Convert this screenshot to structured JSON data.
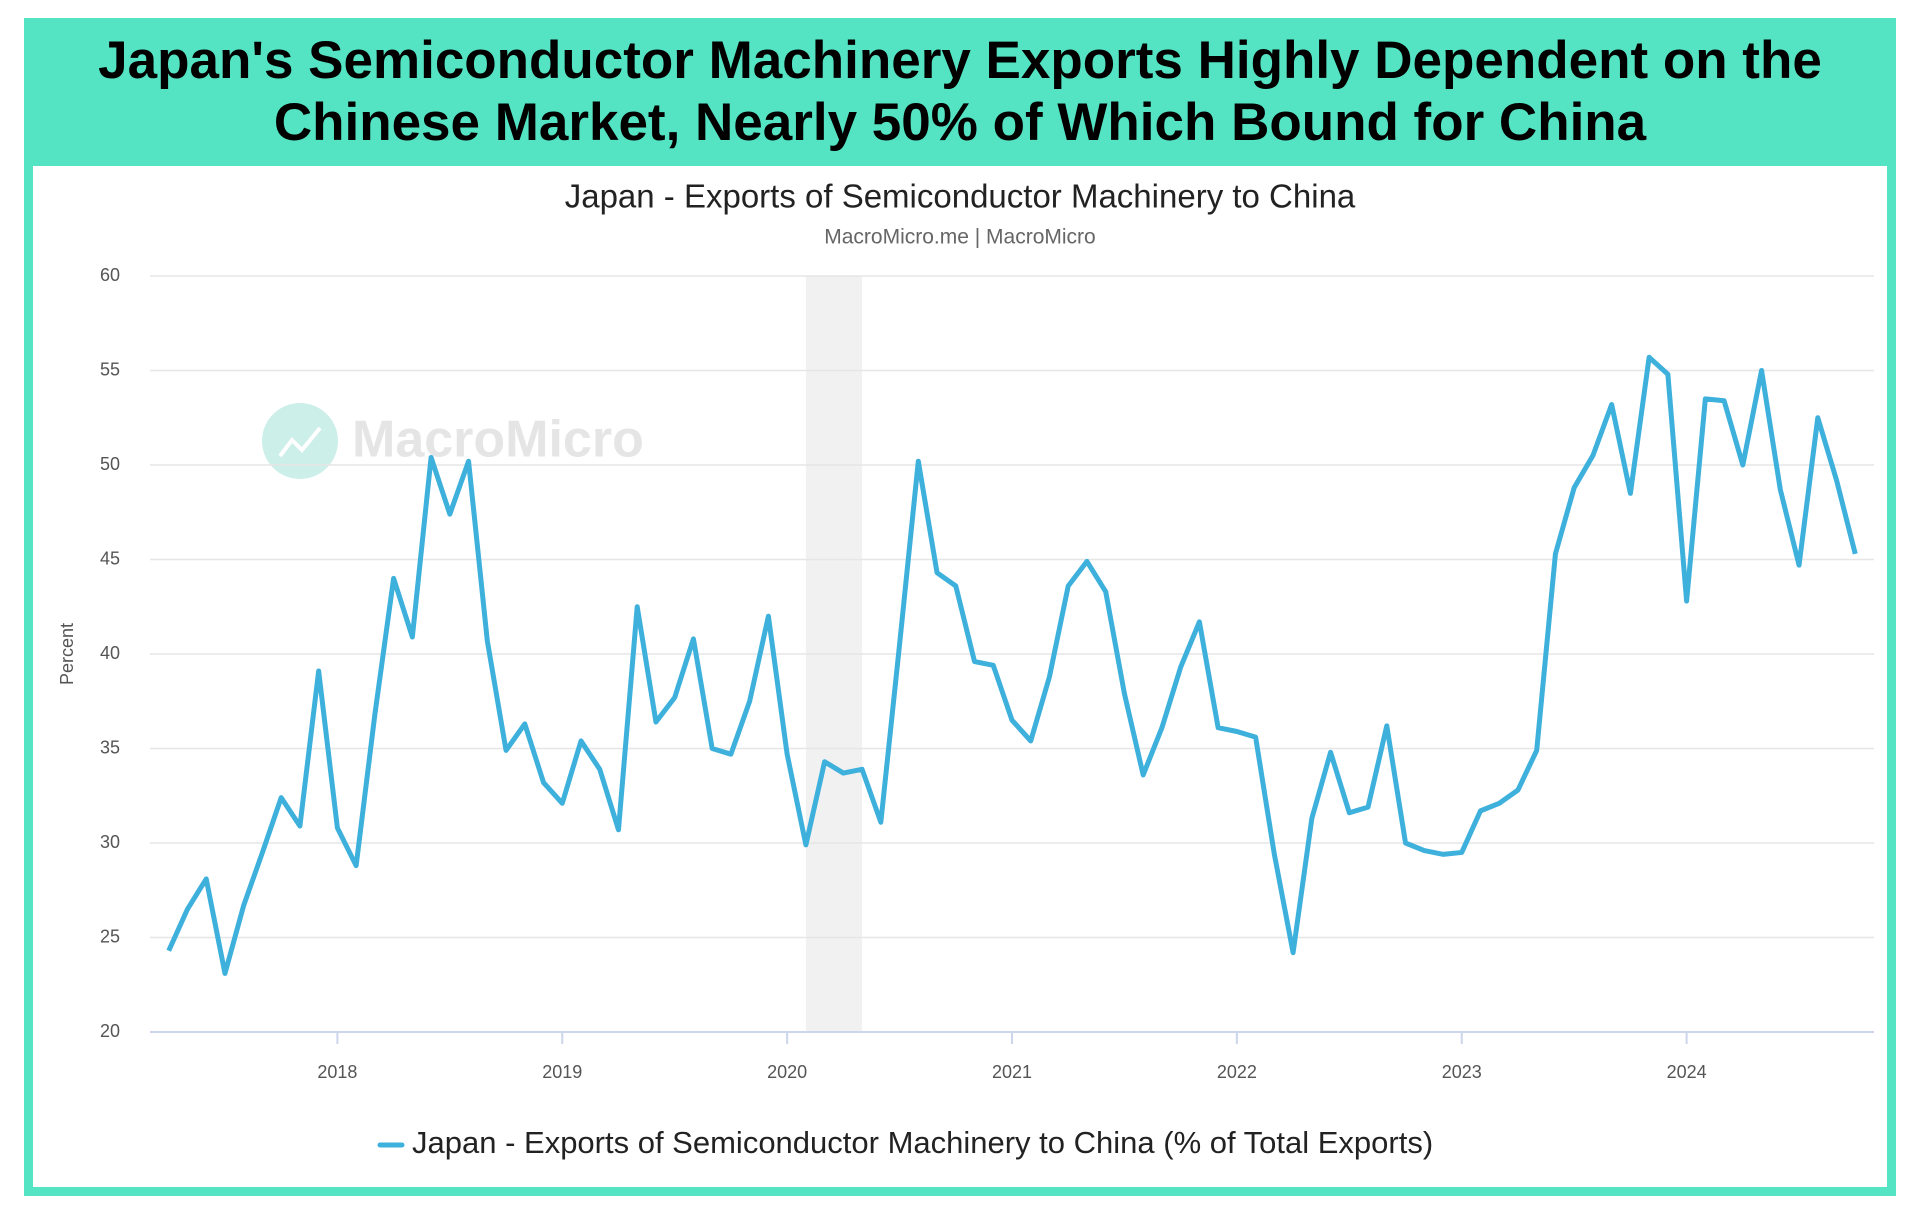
{
  "header": {
    "title": "Japan's Semiconductor Machinery Exports Highly Dependent on the Chinese Market, Nearly 50% of Which Bound for China"
  },
  "chart_data": {
    "type": "line",
    "title": "Japan - Exports of Semiconductor Machinery to China",
    "subtitle": "MacroMicro.me | MacroMicro",
    "watermark": "MacroMicro",
    "y_label": "Percent",
    "x": [
      "2017-04",
      "2017-05",
      "2017-06",
      "2017-07",
      "2017-08",
      "2017-09",
      "2017-10",
      "2017-11",
      "2017-12",
      "2018-01",
      "2018-02",
      "2018-03",
      "2018-04",
      "2018-05",
      "2018-06",
      "2018-07",
      "2018-08",
      "2018-09",
      "2018-10",
      "2018-11",
      "2018-12",
      "2019-01",
      "2019-02",
      "2019-03",
      "2019-04",
      "2019-05",
      "2019-06",
      "2019-07",
      "2019-08",
      "2019-09",
      "2019-10",
      "2019-11",
      "2019-12",
      "2020-01",
      "2020-02",
      "2020-03",
      "2020-04",
      "2020-05",
      "2020-06",
      "2020-07",
      "2020-08",
      "2020-09",
      "2020-10",
      "2020-11",
      "2020-12",
      "2021-01",
      "2021-02",
      "2021-03",
      "2021-04",
      "2021-05",
      "2021-06",
      "2021-07",
      "2021-08",
      "2021-09",
      "2021-10",
      "2021-11",
      "2021-12",
      "2022-01",
      "2022-02",
      "2022-03",
      "2022-04",
      "2022-05",
      "2022-06",
      "2022-07",
      "2022-08",
      "2022-09",
      "2022-10",
      "2022-11",
      "2022-12",
      "2023-01",
      "2023-02",
      "2023-03",
      "2023-04",
      "2023-05",
      "2023-06",
      "2023-07",
      "2023-08",
      "2023-09",
      "2023-10",
      "2023-11",
      "2023-12",
      "2024-01",
      "2024-02",
      "2024-03",
      "2024-04",
      "2024-05",
      "2024-06",
      "2024-07",
      "2024-08",
      "2024-09",
      "2024-10"
    ],
    "series": [
      {
        "name": "Japan - Exports of Semiconductor Machinery to China (% of Total Exports)",
        "color": "#3eb0dc",
        "values": [
          24.3,
          26.5,
          28.1,
          23.1,
          26.7,
          29.5,
          32.4,
          30.9,
          39.1,
          30.8,
          28.8,
          36.8,
          44.0,
          40.9,
          50.4,
          47.4,
          50.2,
          40.7,
          34.9,
          36.3,
          33.2,
          32.1,
          35.4,
          33.9,
          30.7,
          42.5,
          36.4,
          37.7,
          40.8,
          35.0,
          34.7,
          37.5,
          42.0,
          34.7,
          29.9,
          34.3,
          33.7,
          33.9,
          31.1,
          40.5,
          50.2,
          44.3,
          43.6,
          39.6,
          39.4,
          36.5,
          35.4,
          38.8,
          43.6,
          44.9,
          43.3,
          37.9,
          33.6,
          36.1,
          39.3,
          41.7,
          36.1,
          35.9,
          35.6,
          29.4,
          24.2,
          31.3,
          34.8,
          31.6,
          31.9,
          36.2,
          30.0,
          29.6,
          29.4,
          29.5,
          31.7,
          32.1,
          32.8,
          34.9,
          45.3,
          48.8,
          50.5,
          53.2,
          48.5,
          55.7,
          54.8,
          42.8,
          53.5,
          53.4,
          50.0,
          55.0,
          48.7,
          44.7,
          52.5,
          49.2,
          45.3
        ]
      }
    ],
    "xlim": [
      "2017-03",
      "2024-11"
    ],
    "xticks": [
      2018,
      2019,
      2020,
      2021,
      2022,
      2023,
      2024
    ],
    "ylim": [
      20,
      60
    ],
    "yticks": [
      20,
      25,
      30,
      35,
      40,
      45,
      50,
      55,
      60
    ],
    "grid": true,
    "shaded_regions": [
      {
        "start": "2020-02",
        "end": "2020-05"
      }
    ],
    "legend": "bottom"
  }
}
